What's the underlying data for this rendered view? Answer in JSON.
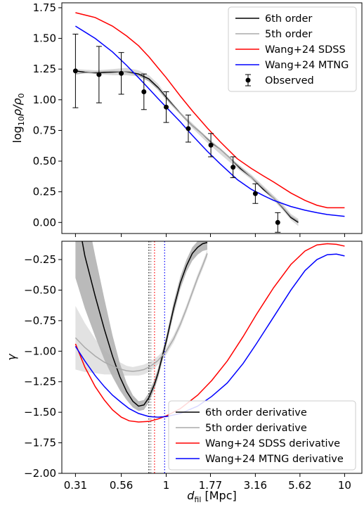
{
  "chart_data": [
    {
      "type": "line",
      "panel": "top",
      "xlabel": "",
      "ylabel": "log₁₀ρ/ρ₀",
      "xscale": "log",
      "xlim": [
        0.26,
        12.5
      ],
      "ylim": [
        -0.09,
        1.79
      ],
      "yticks": [
        "0.00",
        "0.25",
        "0.50",
        "0.75",
        "1.00",
        "1.25",
        "1.50",
        "1.75"
      ],
      "ytick_values": [
        0,
        0.25,
        0.5,
        0.75,
        1.0,
        1.25,
        1.5,
        1.75
      ],
      "xtick_values": [
        0.31,
        0.56,
        1,
        1.77,
        3.16,
        5.62,
        10
      ],
      "legend_position": "top-right",
      "legend": [
        "6th order",
        "5th order",
        "Wang+24 SDSS",
        "Wang+24 MTNG",
        "Observed"
      ],
      "series": [
        {
          "name": "6th order",
          "color": "#000000",
          "x": [
            0.31,
            0.35,
            0.4,
            0.45,
            0.5,
            0.56,
            0.62,
            0.7,
            0.8,
            0.9,
            1.0,
            1.1,
            1.25,
            1.4,
            1.6,
            1.8,
            2.0,
            2.3,
            2.6,
            3.0,
            3.5,
            4.0,
            4.5,
            5.0,
            5.5
          ],
          "y": [
            1.235,
            1.225,
            1.22,
            1.222,
            1.225,
            1.228,
            1.225,
            1.21,
            1.17,
            1.1,
            1.02,
            0.95,
            0.86,
            0.79,
            0.72,
            0.65,
            0.6,
            0.52,
            0.44,
            0.37,
            0.27,
            0.2,
            0.12,
            0.04,
            0.0
          ]
        },
        {
          "name": "5th order",
          "color": "#aaaaaa",
          "x": [
            0.31,
            0.35,
            0.4,
            0.45,
            0.5,
            0.56,
            0.62,
            0.7,
            0.8,
            0.9,
            1.0,
            1.1,
            1.25,
            1.4,
            1.6,
            1.8,
            2.0,
            2.3,
            2.6,
            3.0,
            3.5,
            4.0,
            4.5,
            5.0,
            5.5
          ],
          "y": [
            1.21,
            1.22,
            1.225,
            1.23,
            1.232,
            1.23,
            1.22,
            1.2,
            1.155,
            1.09,
            1.01,
            0.945,
            0.86,
            0.79,
            0.72,
            0.655,
            0.6,
            0.52,
            0.45,
            0.37,
            0.28,
            0.2,
            0.125,
            0.05,
            0.01
          ]
        },
        {
          "name": "Wang+24 SDSS",
          "color": "#ff0000",
          "x": [
            0.31,
            0.4,
            0.5,
            0.6,
            0.7,
            0.8,
            0.9,
            1.0,
            1.2,
            1.4,
            1.7,
            2.0,
            2.5,
            3.0,
            3.5,
            4.0,
            5.0,
            6.0,
            7.0,
            8.0,
            10.0
          ],
          "y": [
            1.71,
            1.67,
            1.6,
            1.52,
            1.44,
            1.35,
            1.26,
            1.18,
            1.03,
            0.91,
            0.77,
            0.66,
            0.52,
            0.44,
            0.38,
            0.33,
            0.24,
            0.18,
            0.14,
            0.12,
            0.12
          ]
        },
        {
          "name": "Wang+24 MTNG",
          "color": "#0000ff",
          "x": [
            0.31,
            0.4,
            0.5,
            0.6,
            0.7,
            0.8,
            0.9,
            1.0,
            1.2,
            1.4,
            1.7,
            2.0,
            2.5,
            3.0,
            3.5,
            4.0,
            5.0,
            6.0,
            7.0,
            8.0,
            10.0
          ],
          "y": [
            1.6,
            1.5,
            1.39,
            1.28,
            1.18,
            1.09,
            1.01,
            0.94,
            0.82,
            0.71,
            0.58,
            0.48,
            0.35,
            0.27,
            0.22,
            0.18,
            0.13,
            0.1,
            0.08,
            0.065,
            0.05
          ]
        }
      ],
      "band": {
        "x": [
          0.31,
          0.4,
          0.5,
          0.6,
          0.7,
          0.8,
          0.9,
          1.0,
          1.2,
          1.4,
          1.7,
          2.0,
          2.5,
          3.0,
          3.5,
          4.0,
          4.5,
          5.0,
          5.5
        ],
        "lo": [
          1.22,
          1.21,
          1.2,
          1.2,
          1.19,
          1.15,
          1.08,
          1.0,
          0.88,
          0.77,
          0.65,
          0.56,
          0.44,
          0.35,
          0.26,
          0.18,
          0.1,
          0.02,
          -0.03
        ],
        "hi": [
          1.25,
          1.24,
          1.25,
          1.26,
          1.24,
          1.2,
          1.13,
          1.04,
          0.9,
          0.81,
          0.69,
          0.6,
          0.48,
          0.39,
          0.3,
          0.22,
          0.15,
          0.07,
          0.03
        ]
      },
      "observed": {
        "name": "Observed",
        "x": [
          0.31,
          0.42,
          0.56,
          0.75,
          1.0,
          1.33,
          1.78,
          2.37,
          3.16,
          4.22,
          5.62
        ],
        "y": [
          1.235,
          1.205,
          1.215,
          1.065,
          0.94,
          0.765,
          0.63,
          0.45,
          0.235,
          0.0,
          0.0
        ],
        "err": [
          0.3,
          0.23,
          0.17,
          0.145,
          0.125,
          0.11,
          0.095,
          0.085,
          0.08,
          0.08,
          0.08
        ]
      }
    },
    {
      "type": "line",
      "panel": "bottom",
      "xlabel": "d_fil [Mpc]",
      "ylabel": "γ",
      "xscale": "log",
      "xlim": [
        0.26,
        12.5
      ],
      "ylim": [
        -2.0,
        -0.1
      ],
      "yticks": [
        "−2.00",
        "−1.75",
        "−1.50",
        "−1.25",
        "−1.00",
        "−0.75",
        "−0.50",
        "−0.25"
      ],
      "ytick_values": [
        -2.0,
        -1.75,
        -1.5,
        -1.25,
        -1.0,
        -0.75,
        -0.5,
        -0.25
      ],
      "xtick_labels": [
        "0.31",
        "0.56",
        "1",
        "1.77",
        "3.16",
        "5.62",
        "10"
      ],
      "xtick_values": [
        0.31,
        0.56,
        1,
        1.77,
        3.16,
        5.62,
        10
      ],
      "legend_position": "bottom-right",
      "legend": [
        "6th order derivative",
        "5th order derivative",
        "Wang+24 SDSS derivative",
        "Wang+24 MTNG derivative"
      ],
      "series": [
        {
          "name": "6th order derivative",
          "color": "#000000",
          "x": [
            0.31,
            0.35,
            0.4,
            0.45,
            0.5,
            0.55,
            0.6,
            0.65,
            0.7,
            0.75,
            0.8,
            0.86,
            0.9,
            1.0,
            1.1,
            1.2,
            1.3,
            1.4,
            1.5,
            1.6,
            1.7
          ],
          "y": [
            0.2,
            -0.22,
            -0.55,
            -0.82,
            -1.04,
            -1.21,
            -1.33,
            -1.41,
            -1.45,
            -1.44,
            -1.38,
            -1.27,
            -1.18,
            -0.92,
            -0.65,
            -0.44,
            -0.3,
            -0.2,
            -0.15,
            -0.12,
            -0.11
          ]
        },
        {
          "name": "5th order derivative",
          "color": "#aaaaaa",
          "x": [
            0.31,
            0.35,
            0.4,
            0.45,
            0.5,
            0.55,
            0.6,
            0.65,
            0.7,
            0.75,
            0.8,
            0.86,
            0.9,
            1.0,
            1.1,
            1.2,
            1.3,
            1.4,
            1.5,
            1.6,
            1.7
          ],
          "y": [
            -0.89,
            -0.97,
            -1.04,
            -1.09,
            -1.12,
            -1.145,
            -1.16,
            -1.165,
            -1.16,
            -1.15,
            -1.13,
            -1.1,
            -1.075,
            -1.0,
            -0.9,
            -0.78,
            -0.65,
            -0.52,
            -0.4,
            -0.3,
            -0.2
          ]
        },
        {
          "name": "Wang+24 SDSS derivative",
          "color": "#ff0000",
          "x": [
            0.31,
            0.35,
            0.4,
            0.45,
            0.5,
            0.56,
            0.62,
            0.7,
            0.8,
            0.9,
            1.0,
            1.2,
            1.5,
            1.8,
            2.2,
            2.7,
            3.2,
            4.0,
            5.0,
            6.0,
            7.0,
            8.0,
            9.0,
            10.0
          ],
          "y": [
            -0.94,
            -1.13,
            -1.29,
            -1.4,
            -1.48,
            -1.54,
            -1.57,
            -1.58,
            -1.575,
            -1.555,
            -1.53,
            -1.47,
            -1.36,
            -1.24,
            -1.08,
            -0.88,
            -0.7,
            -0.48,
            -0.29,
            -0.18,
            -0.13,
            -0.12,
            -0.125,
            -0.14
          ]
        },
        {
          "name": "Wang+24 MTNG derivative",
          "color": "#0000ff",
          "x": [
            0.31,
            0.35,
            0.4,
            0.45,
            0.5,
            0.56,
            0.62,
            0.7,
            0.8,
            0.9,
            1.0,
            1.2,
            1.5,
            1.8,
            2.2,
            2.7,
            3.2,
            4.0,
            5.0,
            6.0,
            7.0,
            8.0,
            9.0,
            10.0
          ],
          "y": [
            -0.96,
            -1.08,
            -1.2,
            -1.29,
            -1.36,
            -1.42,
            -1.47,
            -1.51,
            -1.535,
            -1.54,
            -1.535,
            -1.51,
            -1.45,
            -1.37,
            -1.26,
            -1.1,
            -0.94,
            -0.72,
            -0.5,
            -0.34,
            -0.25,
            -0.21,
            -0.205,
            -0.22
          ]
        }
      ],
      "bands": [
        {
          "color": "#b3b3b3",
          "x": [
            0.31,
            0.35,
            0.4,
            0.45,
            0.5,
            0.55,
            0.6,
            0.65,
            0.7,
            0.75,
            0.8,
            0.86,
            0.9,
            1.0,
            1.1,
            1.2,
            1.3,
            1.4,
            1.5,
            1.6,
            1.7
          ],
          "lo": [
            -0.4,
            -0.65,
            -0.88,
            -1.07,
            -1.21,
            -1.32,
            -1.4,
            -1.46,
            -1.49,
            -1.48,
            -1.42,
            -1.31,
            -1.22,
            -0.96,
            -0.7,
            -0.49,
            -0.35,
            -0.26,
            -0.21,
            -0.18,
            -0.17
          ],
          "hi": [
            0.2,
            0.2,
            -0.22,
            -0.57,
            -0.87,
            -1.1,
            -1.26,
            -1.36,
            -1.41,
            -1.4,
            -1.34,
            -1.23,
            -1.14,
            -0.88,
            -0.6,
            -0.39,
            -0.25,
            -0.15,
            -0.1,
            -0.07,
            -0.06
          ]
        },
        {
          "color": "#dddddd",
          "x": [
            0.31,
            0.35,
            0.4,
            0.45,
            0.5,
            0.55,
            0.6,
            0.65,
            0.7,
            0.75,
            0.8,
            0.86,
            0.9,
            1.0,
            1.1,
            1.2,
            1.3,
            1.4,
            1.5,
            1.6,
            1.7
          ],
          "lo": [
            -1.15,
            -1.17,
            -1.18,
            -1.19,
            -1.19,
            -1.2,
            -1.2,
            -1.2,
            -1.2,
            -1.19,
            -1.17,
            -1.14,
            -1.11,
            -1.03,
            -0.93,
            -0.81,
            -0.68,
            -0.55,
            -0.43,
            -0.33,
            -0.23
          ],
          "hi": [
            -0.63,
            -0.77,
            -0.9,
            -0.99,
            -1.05,
            -1.09,
            -1.12,
            -1.13,
            -1.12,
            -1.11,
            -1.09,
            -1.06,
            -1.04,
            -0.97,
            -0.87,
            -0.75,
            -0.62,
            -0.49,
            -0.37,
            -0.27,
            -0.17
          ]
        }
      ],
      "vlines": [
        {
          "x": 0.8,
          "color": "#000000"
        },
        {
          "x": 0.82,
          "color": "#777777"
        },
        {
          "x": 0.86,
          "color": "#ff0000"
        },
        {
          "x": 0.98,
          "color": "#0000ff"
        }
      ]
    }
  ]
}
